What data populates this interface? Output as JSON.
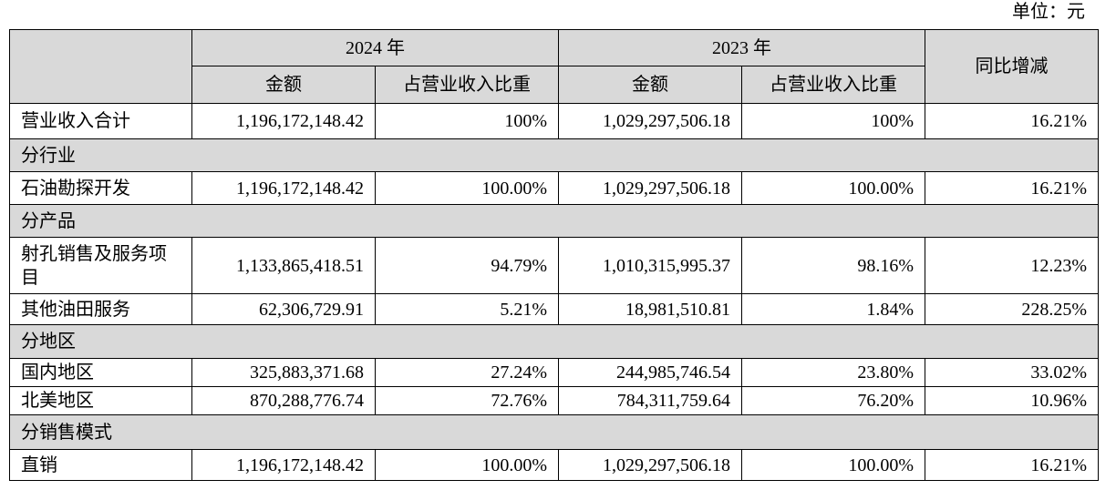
{
  "unit_label": "单位：元",
  "header": {
    "year_2024": "2024 年",
    "year_2023": "2023 年",
    "amount": "金额",
    "share": "占营业收入比重",
    "yoy": "同比增减"
  },
  "total": {
    "label": "营业收入合计",
    "amount_2024": "1,196,172,148.42",
    "share_2024": "100%",
    "amount_2023": "1,029,297,506.18",
    "share_2023": "100%",
    "yoy": "16.21%"
  },
  "sections": [
    {
      "title": "分行业",
      "rows": [
        {
          "label": "石油勘探开发",
          "amount_2024": "1,196,172,148.42",
          "share_2024": "100.00%",
          "amount_2023": "1,029,297,506.18",
          "share_2023": "100.00%",
          "yoy": "16.21%"
        }
      ]
    },
    {
      "title": "分产品",
      "rows": [
        {
          "label": "射孔销售及服务项目",
          "amount_2024": "1,133,865,418.51",
          "share_2024": "94.79%",
          "amount_2023": "1,010,315,995.37",
          "share_2023": "98.16%",
          "yoy": "12.23%"
        },
        {
          "label": "其他油田服务",
          "amount_2024": "62,306,729.91",
          "share_2024": "5.21%",
          "amount_2023": "18,981,510.81",
          "share_2023": "1.84%",
          "yoy": "228.25%"
        }
      ]
    },
    {
      "title": "分地区",
      "rows": [
        {
          "label": "国内地区",
          "amount_2024": "325,883,371.68",
          "share_2024": "27.24%",
          "amount_2023": "244,985,746.54",
          "share_2023": "23.80%",
          "yoy": "33.02%"
        },
        {
          "label": "北美地区",
          "amount_2024": "870,288,776.74",
          "share_2024": "72.76%",
          "amount_2023": "784,311,759.64",
          "share_2023": "76.20%",
          "yoy": "10.96%"
        }
      ]
    },
    {
      "title": "分销售模式",
      "rows": [
        {
          "label": "直销",
          "amount_2024": "1,196,172,148.42",
          "share_2024": "100.00%",
          "amount_2023": "1,029,297,506.18",
          "share_2023": "100.00%",
          "yoy": "16.21%"
        }
      ]
    }
  ]
}
